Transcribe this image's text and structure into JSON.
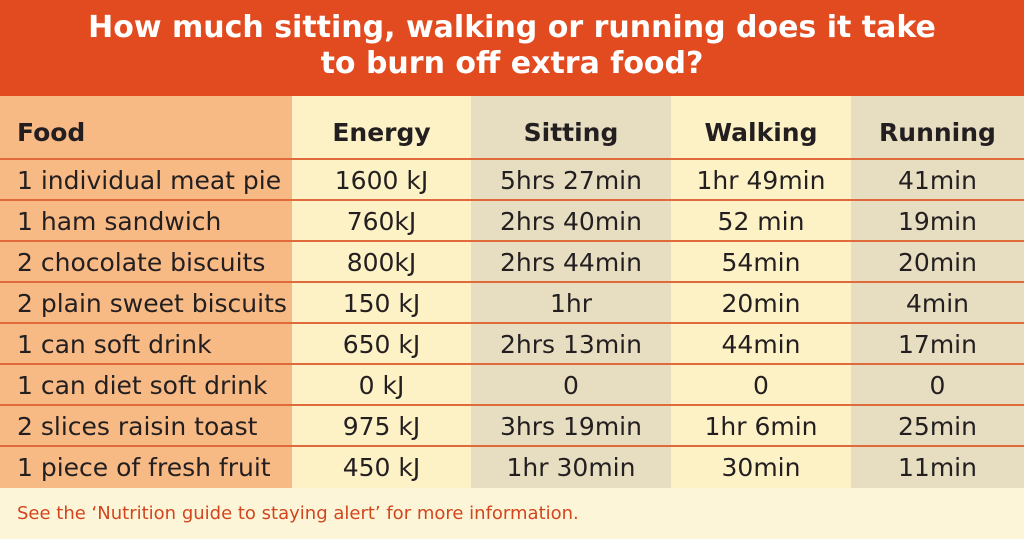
{
  "title": {
    "line1": "How much sitting, walking or running does it take",
    "line2": "to burn off extra food?"
  },
  "table": {
    "headers": [
      "Food",
      "Energy",
      "Sitting",
      "Walking",
      "Running"
    ],
    "rows": [
      [
        "1 individual meat pie",
        "1600 kJ",
        "5hrs 27min",
        "1hr 49min",
        "41min"
      ],
      [
        "1 ham sandwich",
        "760kJ",
        "2hrs 40min",
        "52 min",
        "19min"
      ],
      [
        "2 chocolate biscuits",
        "800kJ",
        "2hrs 44min",
        "54min",
        "20min"
      ],
      [
        "2 plain sweet biscuits",
        "150 kJ",
        "1hr",
        "20min",
        "4min"
      ],
      [
        "1 can soft drink",
        "650 kJ",
        "2hrs 13min",
        "44min",
        "17min"
      ],
      [
        "1 can diet soft drink",
        "0 kJ",
        "0",
        "0",
        "0"
      ],
      [
        "2 slices raisin toast",
        "975 kJ",
        "3hrs 19min",
        "1hr 6min",
        "25min"
      ],
      [
        "1 piece of fresh fruit",
        "450 kJ",
        "1hr 30min",
        "30min",
        "11min"
      ]
    ]
  },
  "footer": {
    "note": "See the ‘Nutrition guide to staying alert’ for more information."
  },
  "colors": {
    "header_bg": "#e14b1f",
    "food_column": "#f8ba85",
    "light_column": "#fdf1c6",
    "dark_column": "#e7ddc0",
    "row_divider": "#e06a3c",
    "footer_text": "#d2451e"
  }
}
